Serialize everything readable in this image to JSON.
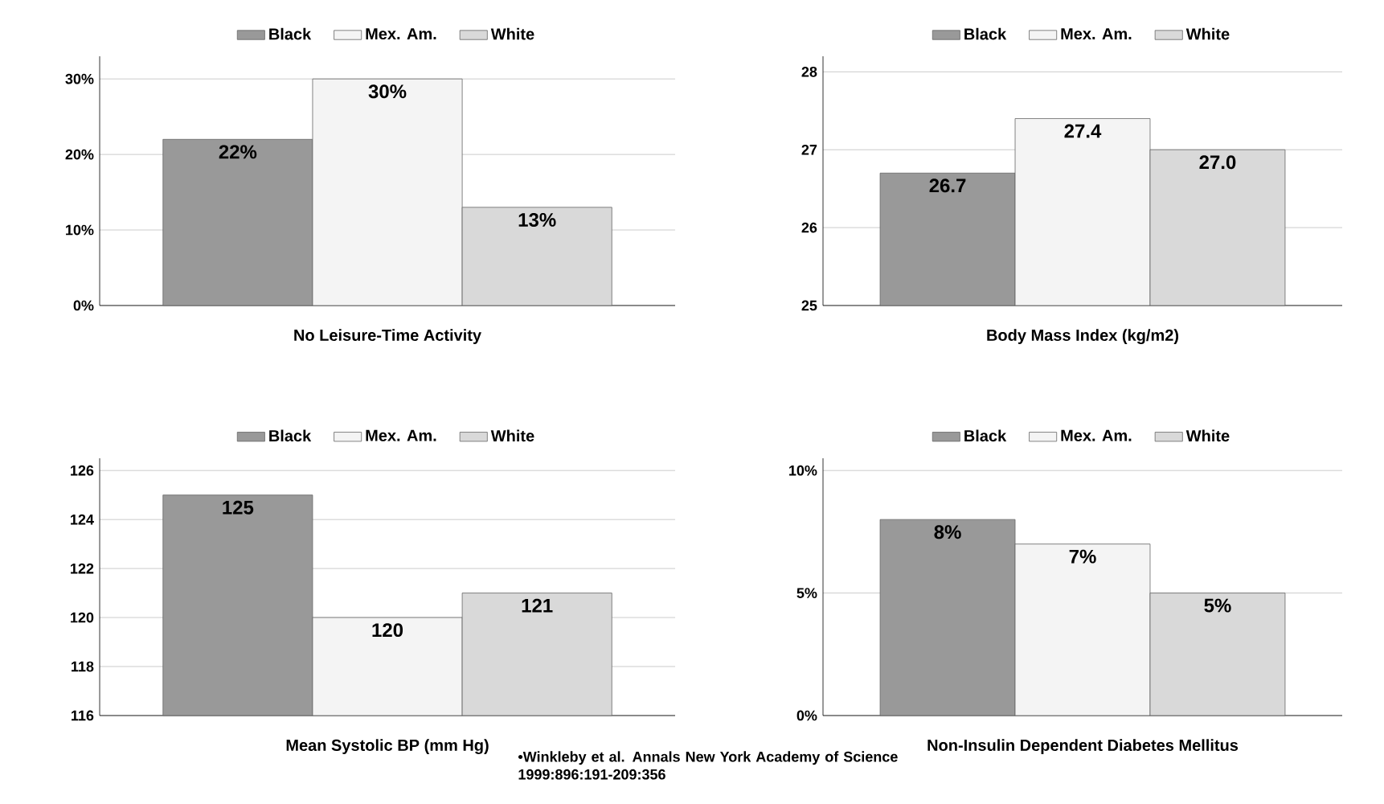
{
  "chart_data": [
    {
      "type": "bar",
      "xlabel": "No Leisure-Time Activity",
      "categories": [
        null
      ],
      "series": [
        {
          "name": "Black",
          "color": "#999999",
          "values": [
            22
          ],
          "value_labels": [
            "22%"
          ]
        },
        {
          "name": "Mex. Am.",
          "color": "#f4f4f4",
          "values": [
            30
          ],
          "value_labels": [
            "30%"
          ]
        },
        {
          "name": "White",
          "color": "#d9d9d9",
          "values": [
            13
          ],
          "value_labels": [
            "13%"
          ]
        }
      ],
      "ylim": [
        0,
        33
      ],
      "yticks": [
        {
          "value": 0,
          "label": "0%"
        },
        {
          "value": 10,
          "label": "10%"
        },
        {
          "value": 20,
          "label": "20%"
        },
        {
          "value": 30,
          "label": "30%"
        }
      ],
      "grid": "y",
      "legend": "top"
    },
    {
      "type": "bar",
      "xlabel": "Body Mass Index (kg/m2)",
      "categories": [
        null
      ],
      "series": [
        {
          "name": "Black",
          "color": "#999999",
          "values": [
            26.7
          ],
          "value_labels": [
            "26.7"
          ]
        },
        {
          "name": "Mex. Am.",
          "color": "#f4f4f4",
          "values": [
            27.4
          ],
          "value_labels": [
            "27.4"
          ]
        },
        {
          "name": "White",
          "color": "#d9d9d9",
          "values": [
            27.0
          ],
          "value_labels": [
            "27.0"
          ]
        }
      ],
      "ylim": [
        25,
        28.2
      ],
      "yticks": [
        25,
        26,
        27,
        28
      ],
      "grid": "y",
      "legend": "top"
    },
    {
      "type": "bar",
      "xlabel": "Mean Systolic BP (mm Hg)",
      "categories": [
        null
      ],
      "series": [
        {
          "name": "Black",
          "color": "#999999",
          "values": [
            125
          ]
        },
        {
          "name": "Mex. Am.",
          "color": "#f4f4f4",
          "values": [
            120
          ]
        },
        {
          "name": "White",
          "color": "#d9d9d9",
          "values": [
            121
          ]
        }
      ],
      "ylim": [
        116,
        126.5
      ],
      "yticks": [
        116,
        118,
        120,
        122,
        124,
        126
      ],
      "grid": "y",
      "legend": "top",
      "data_labels": true
    },
    {
      "type": "bar",
      "xlabel": "Non-Insulin Dependent Diabetes Mellitus",
      "categories": [
        null
      ],
      "series": [
        {
          "name": "Black",
          "color": "#999999",
          "values": [
            8
          ],
          "value_labels": [
            "8%"
          ]
        },
        {
          "name": "Mex. Am.",
          "color": "#f4f4f4",
          "values": [
            7
          ],
          "value_labels": [
            "7%"
          ]
        },
        {
          "name": "White",
          "color": "#d9d9d9",
          "values": [
            5
          ],
          "value_labels": [
            "5%"
          ]
        }
      ],
      "ylim": [
        0,
        10.5
      ],
      "yticks": [
        {
          "value": 0,
          "label": "0%"
        },
        {
          "value": 5,
          "label": "5%"
        },
        {
          "value": 10,
          "label": "10%"
        }
      ],
      "grid": "y",
      "legend": "top",
      "annotations": [
        "•Winkleby et al. Annals New York Academy of Science 1999:896:191-209:356"
      ]
    }
  ]
}
